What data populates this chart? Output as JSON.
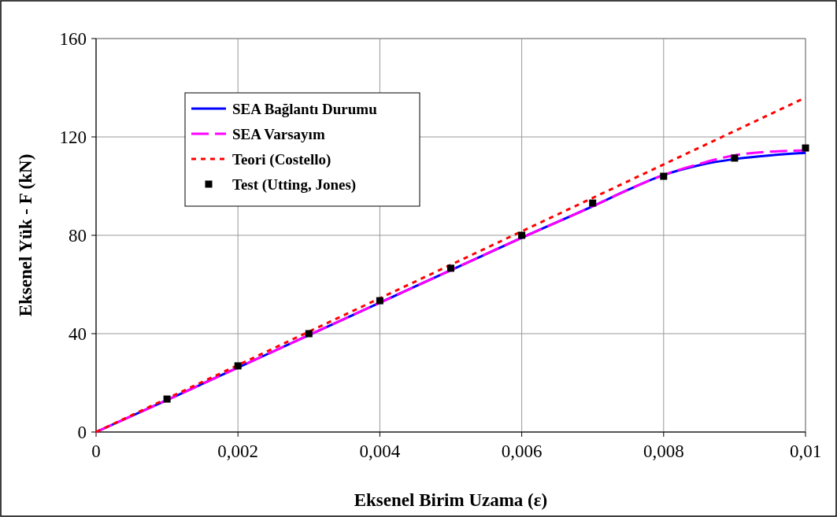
{
  "chart_data": {
    "type": "line",
    "xlabel": "Eksenel Birim Uzama (ε)",
    "ylabel": "Eksenel Yük - F (kN)",
    "xlim": [
      0,
      0.01
    ],
    "ylim": [
      0,
      160
    ],
    "xticks": [
      0,
      {
        "value": 0.002,
        "label": "0,002"
      },
      {
        "value": 0.004,
        "label": "0,004"
      },
      {
        "value": 0.006,
        "label": "0,006"
      },
      {
        "value": 0.008,
        "label": "0,008"
      },
      {
        "value": 0.01,
        "label": "0,01"
      }
    ],
    "yticks": [
      0,
      40,
      80,
      120,
      160
    ],
    "grid": true,
    "legend": "top left",
    "series": [
      {
        "name": "SEA Bağlantı Durumu",
        "color": "#0000ff",
        "line_style": "solid",
        "x": [
          0,
          0.001,
          0.002,
          0.003,
          0.004,
          0.005,
          0.006,
          0.007,
          0.0075,
          0.008,
          0.0085,
          0.009,
          0.0095,
          0.01
        ],
        "values": [
          0,
          13,
          26.2,
          39.4,
          52.6,
          65.8,
          79,
          91.8,
          98.5,
          104.5,
          108.5,
          111,
          112.5,
          113.5
        ]
      },
      {
        "name": "SEA Varsayım",
        "color": "#ff00ff",
        "line_style": "dashed",
        "x": [
          0,
          0.001,
          0.002,
          0.003,
          0.004,
          0.005,
          0.006,
          0.007,
          0.0075,
          0.008,
          0.0085,
          0.009,
          0.0095,
          0.01
        ],
        "values": [
          0,
          13,
          26.2,
          39.4,
          52.6,
          65.8,
          79,
          91.8,
          98.5,
          104.5,
          109,
          112.5,
          114,
          114.5
        ]
      },
      {
        "name": "Teori (Costello)",
        "color": "#ff0000",
        "line_style": "dotted",
        "x": [
          0,
          0.01
        ],
        "values": [
          0,
          136
        ]
      },
      {
        "name": "Test (Utting, Jones)",
        "type": "scatter",
        "color": "#000000",
        "marker": "square",
        "x": [
          0.001,
          0.002,
          0.003,
          0.004,
          0.005,
          0.006,
          0.007,
          0.008,
          0.009,
          0.01
        ],
        "values": [
          13.4,
          26.9,
          40,
          53.4,
          66.6,
          80,
          93.1,
          104,
          111.4,
          115.5
        ]
      }
    ]
  }
}
